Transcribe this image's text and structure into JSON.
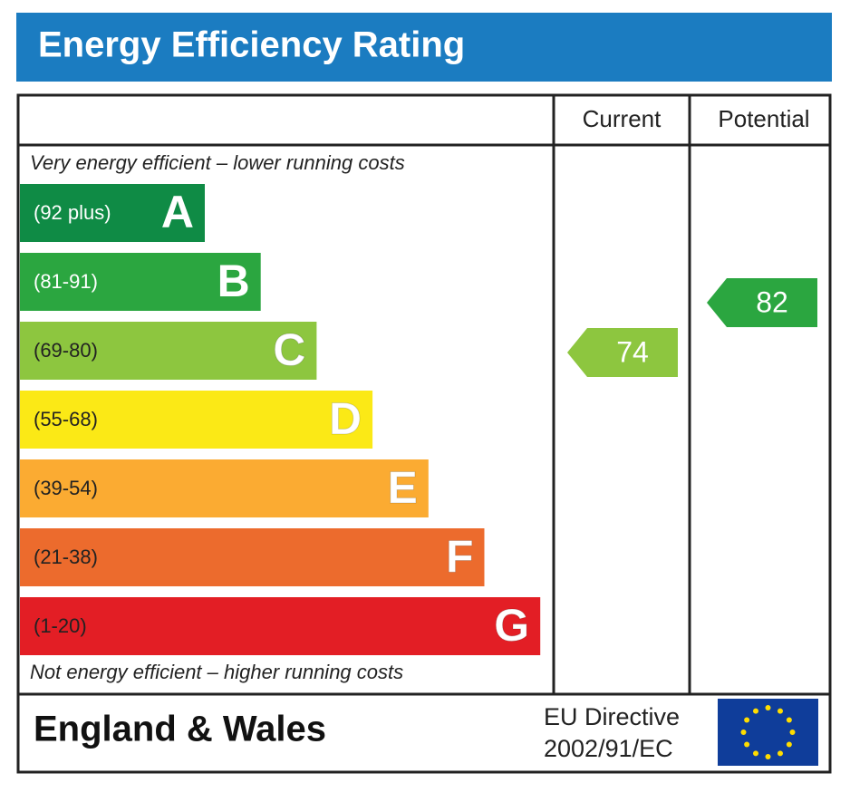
{
  "header": {
    "title": "Energy Efficiency Rating",
    "columns": [
      "Current",
      "Potential"
    ]
  },
  "top_note": "Very energy efficient – lower running costs",
  "bottom_note": "Not energy efficient – higher running costs",
  "bands": [
    {
      "range": "(92 plus)",
      "letter": "A",
      "color": "#0f8b45"
    },
    {
      "range": "(81-91)",
      "letter": "B",
      "color": "#2ba640"
    },
    {
      "range": "(69-80)",
      "letter": "C",
      "color": "#8dc63f"
    },
    {
      "range": "(55-68)",
      "letter": "D",
      "color": "#fbe916"
    },
    {
      "range": "(39-54)",
      "letter": "E",
      "color": "#fbab32"
    },
    {
      "range": "(21-38)",
      "letter": "F",
      "color": "#ec6b2d"
    },
    {
      "range": "(1-20)",
      "letter": "G",
      "color": "#e31e25"
    }
  ],
  "ratings": {
    "current": 74,
    "potential": 82
  },
  "footer": {
    "region": "England & Wales",
    "directive": [
      "EU Directive",
      "2002/91/EC"
    ]
  }
}
